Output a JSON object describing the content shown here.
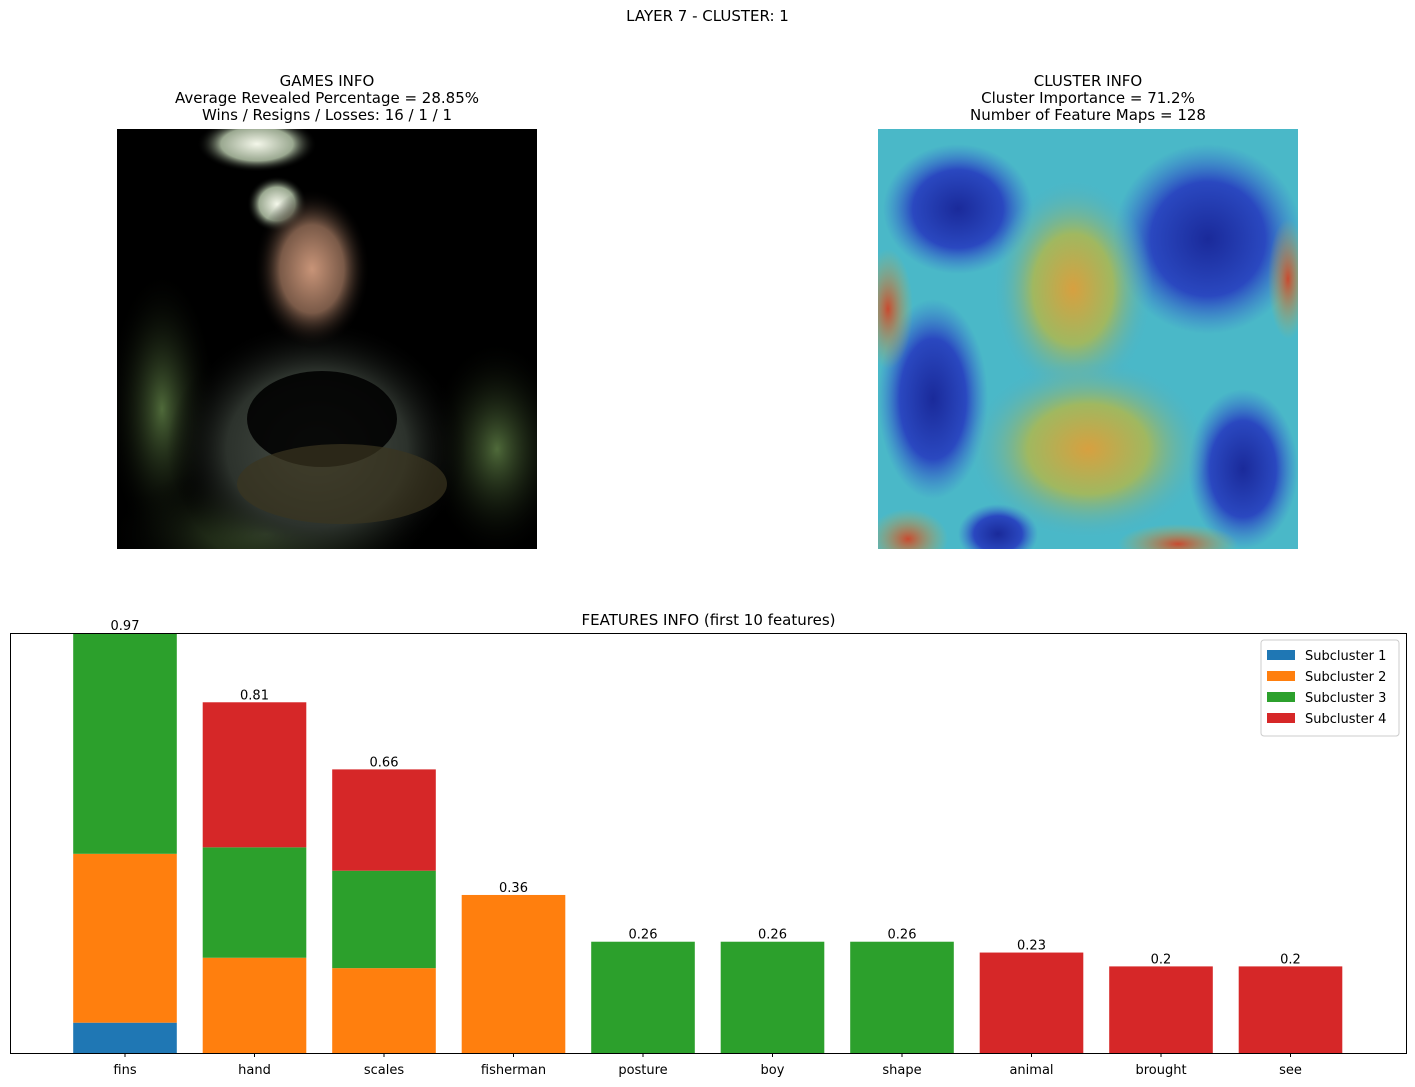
{
  "suptitle": "LAYER 7 - CLUSTER: 1",
  "games_info": {
    "title": "GAMES INFO",
    "line1": "Average Revealed Percentage = 28.85%",
    "line2": "Wins / Resigns / Losses: 16 / 1 / 1"
  },
  "cluster_info": {
    "title": "CLUSTER INFO",
    "line1": "Cluster Importance = 71.2%",
    "line2": "Number of Feature Maps = 128"
  },
  "chart_data": {
    "type": "bar",
    "stacked": true,
    "title": "FEATURES INFO (first 10 features)",
    "xlabel": "",
    "ylabel": "",
    "ylim": [
      0,
      0.97
    ],
    "legend": "top-right",
    "categories": [
      "fins",
      "hand",
      "scales",
      "fisherman",
      "posture",
      "boy",
      "shape",
      "animal",
      "brought",
      "see"
    ],
    "totals_labels": [
      "0.97",
      "0.81",
      "0.66",
      "0.36",
      "0.26",
      "0.26",
      "0.26",
      "0.23",
      "0.2",
      "0.2"
    ],
    "series": [
      {
        "name": "Subcluster 1",
        "color": "#1f77b4",
        "values": [
          0.07,
          0,
          0,
          0,
          0,
          0,
          0,
          0,
          0,
          0
        ]
      },
      {
        "name": "Subcluster 2",
        "color": "#ff7f0e",
        "values": [
          0.39,
          0.22,
          0.196,
          0.365,
          0,
          0,
          0,
          0,
          0,
          0
        ]
      },
      {
        "name": "Subcluster 3",
        "color": "#2ca02c",
        "values": [
          0.51,
          0.255,
          0.225,
          0,
          0.257,
          0.257,
          0.257,
          0,
          0,
          0
        ]
      },
      {
        "name": "Subcluster 4",
        "color": "#d62728",
        "values": [
          0,
          0.335,
          0.234,
          0,
          0,
          0,
          0,
          0.232,
          0.2,
          0.2
        ]
      }
    ]
  }
}
